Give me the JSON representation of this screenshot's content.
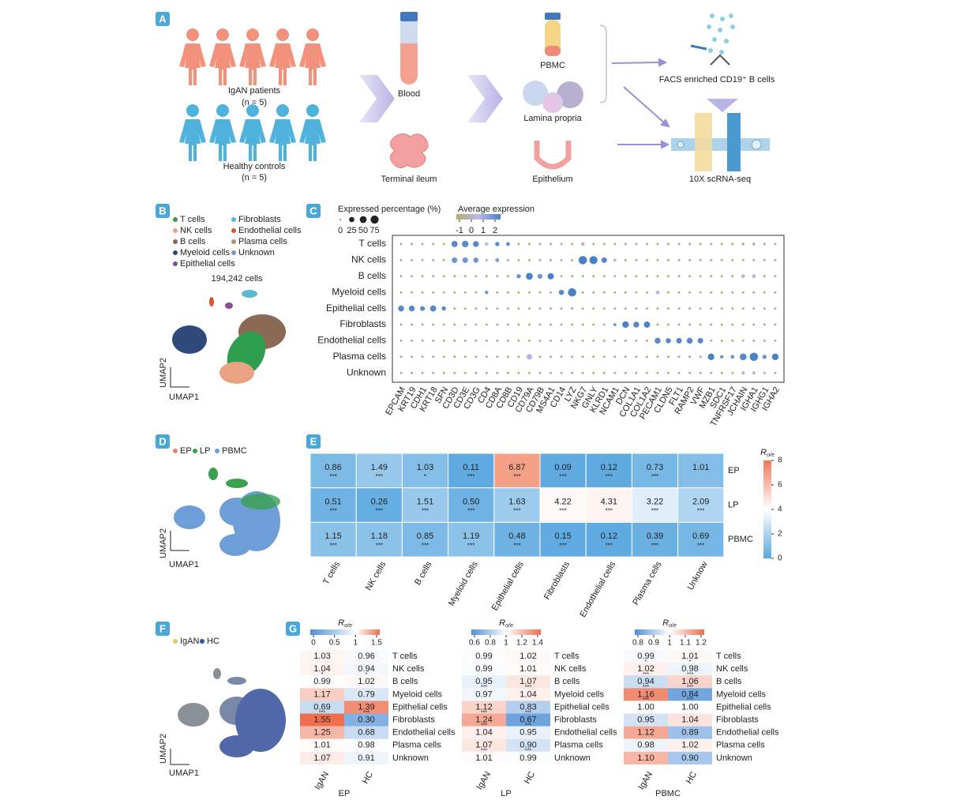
{
  "panel_a": {
    "letter": "A",
    "patients_label": "IgAN patients",
    "patients_n": "(n = 5)",
    "controls_label": "Healthy controls",
    "controls_n": "(n = 5)",
    "blood": "Blood",
    "ileum": "Terminal ileum",
    "pbmc": "PBMC",
    "lamina": "Lamina propria",
    "epithelium": "Epithelium",
    "facs": "FACS enriched CD19⁺ B cells",
    "seq": "10X scRNA-seq"
  },
  "panel_b": {
    "letter": "B",
    "legend": [
      {
        "name": "T cells",
        "color": "#2e9e4f"
      },
      {
        "name": "NK cells",
        "color": "#e9a383"
      },
      {
        "name": "B cells",
        "color": "#8b6a55"
      },
      {
        "name": "Myeloid cells",
        "color": "#2f4a7a"
      },
      {
        "name": "Epithelial cells",
        "color": "#8a4a9a"
      },
      {
        "name": "Fibroblasts",
        "color": "#5bb8d0"
      },
      {
        "name": "Endothelial cells",
        "color": "#d9542f"
      },
      {
        "name": "Plasma cells",
        "color": "#a39585"
      },
      {
        "name": "Unknown",
        "color": "#8a90c8"
      }
    ],
    "cell_count": "194,242 cells",
    "ylabel": "UMAP2",
    "xlabel": "UMAP1"
  },
  "panel_c": {
    "letter": "C",
    "size_title": "Expressed percentage (%)",
    "size_ticks": [
      0,
      25,
      50,
      75
    ],
    "color_title": "Average expression",
    "color_ticks": [
      -1,
      0,
      1,
      2
    ],
    "clim": [
      -1,
      2
    ],
    "colors": [
      "#b5ac6e",
      "#bdb9e6",
      "#4a82c8"
    ],
    "rows": [
      "T cells",
      "NK cells",
      "B cells",
      "Myeloid cells",
      "Epithelial cells",
      "Fibroblasts",
      "Endothelial cells",
      "Plasma cells",
      "Unknown"
    ],
    "genes": [
      "EPCAM",
      "KRT19",
      "CDH1",
      "KRT18",
      "SFN",
      "CD3D",
      "CD3E",
      "CD3G",
      "CD4",
      "CD8A",
      "CD8B",
      "CD19",
      "CD79A",
      "CD79B",
      "MS4A1",
      "CD14",
      "LYZ",
      "NKG7",
      "GNLY",
      "KLRD1",
      "NCAM1",
      "DCN",
      "COL1A1",
      "COL1A2",
      "PECAM1",
      "CLDN5",
      "FLT1",
      "RAMP2",
      "VWF",
      "MZB1",
      "SDC1",
      "TNFRSF17",
      "JCHAIN",
      "IGHA1",
      "IGHG1",
      "IGHA2"
    ],
    "pct": [
      [
        2,
        2,
        2,
        2,
        2,
        40,
        45,
        35,
        8,
        15,
        10,
        2,
        2,
        2,
        2,
        2,
        2,
        8,
        2,
        2,
        2,
        2,
        2,
        2,
        2,
        2,
        2,
        2,
        2,
        2,
        2,
        2,
        4,
        4,
        2,
        2
      ],
      [
        2,
        2,
        2,
        2,
        2,
        30,
        30,
        25,
        2,
        12,
        5,
        2,
        2,
        2,
        2,
        2,
        2,
        80,
        75,
        30,
        5,
        2,
        2,
        2,
        2,
        2,
        2,
        2,
        2,
        2,
        2,
        2,
        2,
        2,
        2,
        2
      ],
      [
        2,
        2,
        2,
        2,
        2,
        2,
        2,
        2,
        2,
        2,
        2,
        15,
        50,
        20,
        40,
        2,
        2,
        2,
        2,
        2,
        2,
        2,
        2,
        2,
        2,
        2,
        2,
        2,
        2,
        2,
        2,
        2,
        10,
        10,
        2,
        2
      ],
      [
        2,
        2,
        2,
        2,
        2,
        2,
        2,
        2,
        8,
        2,
        2,
        2,
        2,
        2,
        2,
        25,
        80,
        2,
        2,
        2,
        2,
        2,
        2,
        2,
        10,
        2,
        2,
        2,
        2,
        2,
        2,
        2,
        2,
        2,
        2,
        2
      ],
      [
        35,
        35,
        20,
        40,
        15,
        2,
        2,
        2,
        2,
        2,
        2,
        2,
        2,
        2,
        2,
        2,
        2,
        2,
        2,
        2,
        2,
        2,
        2,
        2,
        2,
        2,
        2,
        2,
        2,
        2,
        2,
        2,
        2,
        2,
        2,
        2
      ],
      [
        2,
        2,
        2,
        2,
        2,
        2,
        2,
        2,
        2,
        2,
        2,
        2,
        2,
        2,
        2,
        2,
        2,
        2,
        2,
        2,
        5,
        45,
        35,
        40,
        2,
        2,
        2,
        2,
        2,
        2,
        2,
        2,
        2,
        2,
        2,
        2
      ],
      [
        2,
        2,
        2,
        2,
        2,
        2,
        2,
        2,
        2,
        2,
        2,
        2,
        2,
        2,
        2,
        2,
        2,
        2,
        2,
        2,
        2,
        2,
        2,
        2,
        35,
        25,
        30,
        35,
        30,
        2,
        2,
        2,
        2,
        2,
        2,
        2
      ],
      [
        2,
        2,
        2,
        2,
        2,
        2,
        2,
        2,
        2,
        2,
        2,
        2,
        30,
        2,
        2,
        2,
        2,
        2,
        2,
        2,
        2,
        2,
        2,
        2,
        2,
        2,
        2,
        2,
        2,
        45,
        8,
        10,
        50,
        80,
        15,
        45
      ],
      [
        2,
        2,
        2,
        2,
        2,
        2,
        2,
        2,
        2,
        2,
        2,
        2,
        2,
        2,
        2,
        2,
        2,
        2,
        2,
        2,
        2,
        2,
        2,
        2,
        2,
        2,
        2,
        2,
        2,
        2,
        2,
        2,
        6,
        6,
        2,
        2
      ]
    ],
    "expr": [
      [
        -0.8,
        -0.8,
        -0.8,
        -0.8,
        -0.8,
        1.8,
        1.8,
        1.8,
        0.5,
        1.8,
        1.8,
        -0.8,
        -0.8,
        -0.8,
        -0.8,
        -0.8,
        -0.8,
        0,
        -0.8,
        -0.8,
        -0.8,
        -0.8,
        -0.8,
        -0.8,
        -0.8,
        -0.8,
        -0.8,
        -0.8,
        -0.8,
        -0.8,
        -0.8,
        -0.8,
        -0.8,
        -0.8,
        -0.8,
        -0.8
      ],
      [
        -0.8,
        -0.8,
        -0.8,
        -0.8,
        -0.8,
        1.5,
        1.5,
        1.5,
        -0.8,
        1.2,
        0.5,
        -0.8,
        -0.8,
        -0.8,
        -0.8,
        -0.8,
        -0.8,
        2,
        2,
        1.8,
        0,
        -0.8,
        -0.8,
        -0.8,
        -0.8,
        -0.8,
        -0.8,
        -0.8,
        -0.8,
        -0.8,
        -0.8,
        -0.8,
        -0.8,
        -0.8,
        -0.8,
        -0.8
      ],
      [
        -0.8,
        -0.8,
        -0.8,
        -0.8,
        -0.8,
        -0.8,
        -0.8,
        -0.8,
        -0.8,
        -0.8,
        -0.8,
        1.5,
        2,
        1.5,
        2,
        -0.8,
        -0.8,
        -0.8,
        -0.8,
        -0.8,
        -0.8,
        -0.8,
        -0.8,
        -0.8,
        -0.8,
        -0.8,
        -0.8,
        -0.8,
        -0.8,
        -0.8,
        -0.8,
        -0.8,
        0,
        0.3,
        -0.8,
        -0.8
      ],
      [
        -0.8,
        -0.8,
        -0.8,
        -0.8,
        -0.8,
        -0.8,
        -0.8,
        -0.8,
        1.5,
        -0.8,
        -0.8,
        -0.8,
        -0.8,
        -0.8,
        -0.8,
        1.8,
        2,
        -0.8,
        -0.8,
        -0.8,
        -0.8,
        -0.8,
        -0.8,
        -0.8,
        0.6,
        -0.8,
        -0.8,
        -0.8,
        -0.8,
        -0.8,
        -0.8,
        -0.8,
        -0.8,
        -0.8,
        -0.8,
        -0.8
      ],
      [
        1.8,
        1.8,
        1.8,
        1.8,
        1.8,
        -0.8,
        -0.8,
        -0.8,
        -0.8,
        -0.8,
        -0.8,
        -0.8,
        -0.8,
        -0.8,
        -0.8,
        -0.8,
        -0.8,
        -0.8,
        -0.8,
        -0.8,
        -0.8,
        -0.8,
        -0.8,
        -0.8,
        -0.8,
        -0.8,
        -0.8,
        -0.8,
        -0.8,
        -0.8,
        -0.8,
        -0.8,
        -0.8,
        -0.8,
        -0.8,
        -0.8
      ],
      [
        -0.8,
        -0.8,
        -0.8,
        -0.8,
        -0.8,
        -0.8,
        -0.8,
        -0.8,
        -0.8,
        -0.8,
        -0.8,
        -0.8,
        -0.8,
        -0.8,
        -0.8,
        -0.8,
        -0.8,
        -0.8,
        -0.8,
        -0.8,
        1.5,
        2,
        1.8,
        2,
        -0.8,
        -0.8,
        -0.8,
        -0.8,
        -0.8,
        -0.8,
        -0.8,
        -0.8,
        -0.8,
        -0.8,
        -0.8,
        -0.8
      ],
      [
        -0.8,
        -0.8,
        -0.8,
        -0.8,
        -0.8,
        -0.8,
        -0.8,
        -0.8,
        -0.8,
        -0.8,
        -0.8,
        -0.8,
        -0.8,
        -0.8,
        -0.8,
        -0.8,
        -0.8,
        -0.8,
        -0.8,
        -0.8,
        -0.8,
        -0.8,
        -0.8,
        -0.8,
        1.8,
        1.8,
        1.8,
        1.8,
        1.8,
        -0.8,
        -0.8,
        -0.8,
        -0.8,
        -0.8,
        -0.8,
        -0.8
      ],
      [
        -0.8,
        -0.8,
        -0.8,
        -0.8,
        -0.8,
        -0.8,
        -0.8,
        -0.8,
        -0.8,
        -0.8,
        -0.8,
        -0.8,
        0.6,
        -0.8,
        -0.8,
        -0.8,
        -0.8,
        -0.8,
        -0.8,
        -0.8,
        -0.8,
        -0.8,
        -0.8,
        -0.8,
        -0.8,
        -0.8,
        -0.8,
        -0.8,
        -0.8,
        2,
        1.5,
        1.5,
        1.8,
        2,
        1.5,
        2
      ],
      [
        -0.8,
        -0.8,
        -0.8,
        -0.8,
        -0.8,
        -0.8,
        -0.8,
        -0.8,
        -0.8,
        -0.8,
        -0.8,
        -0.8,
        -0.8,
        -0.8,
        -0.8,
        -0.8,
        -0.8,
        -0.8,
        -0.8,
        -0.8,
        -0.8,
        -0.8,
        -0.8,
        -0.8,
        -0.8,
        -0.8,
        -0.8,
        -0.8,
        -0.8,
        -0.8,
        -0.8,
        -0.8,
        0.2,
        0.2,
        -0.8,
        -0.8
      ]
    ]
  },
  "panel_d": {
    "letter": "D",
    "legend": [
      {
        "name": "EP",
        "color": "#ef8070"
      },
      {
        "name": "LP",
        "color": "#3aa050"
      },
      {
        "name": "PBMC",
        "color": "#6d9ed8"
      }
    ],
    "ylabel": "UMAP2",
    "xlabel": "UMAP1"
  },
  "panel_e": {
    "letter": "E",
    "columns": [
      "T cells",
      "NK cells",
      "B cells",
      "Myeloid cells",
      "Epithelial cells",
      "Fibroblasts",
      "Endothelial cells",
      "Plasma cells",
      "Unknow"
    ],
    "rows": [
      "EP",
      "LP",
      "PBMC"
    ],
    "values": [
      [
        0.86,
        1.49,
        1.03,
        0.11,
        6.87,
        0.09,
        0.12,
        0.73,
        1.01
      ],
      [
        0.51,
        0.26,
        1.51,
        0.5,
        1.63,
        4.22,
        4.31,
        3.22,
        2.09
      ],
      [
        1.15,
        1.18,
        0.85,
        1.19,
        0.48,
        0.15,
        0.12,
        0.39,
        0.69
      ]
    ],
    "value_labels": [
      [
        "0.86",
        "1.49",
        "1.03",
        "0.11",
        "6.87",
        "0.09",
        "0.12",
        "0.73",
        "1.01"
      ],
      [
        "0.51",
        "0.26",
        "1.51",
        "0.50",
        "1.63",
        "4.22",
        "4.31",
        "3.22",
        "2.09"
      ],
      [
        "1.15",
        "1.18",
        "0.85",
        "1.19",
        "0.48",
        "0.15",
        "0.12",
        "0.39",
        "0.69"
      ]
    ],
    "stars": [
      [
        "***",
        "***",
        "*",
        "***",
        "***",
        "***",
        "***",
        "***",
        null
      ],
      [
        "***",
        "***",
        "***",
        "***",
        "***",
        "***",
        "***",
        "***",
        "***"
      ],
      [
        "***",
        "***",
        "***",
        "***",
        "***",
        "***",
        "***",
        "***",
        "***"
      ]
    ],
    "cbar_title": "R",
    "cbar_sub": "o/e",
    "clim": [
      0,
      8
    ],
    "center": 4,
    "ticks": [
      0,
      2,
      4,
      6,
      8
    ],
    "colors": [
      "#5aa8e0",
      "#ffffff",
      "#f07a58"
    ]
  },
  "panel_f": {
    "letter": "F",
    "legend": [
      {
        "name": "IgAN",
        "color": "#e8c060"
      },
      {
        "name": "HC",
        "color": "#2f50b0"
      }
    ],
    "ylabel": "UMAP2",
    "xlabel": "UMAP1"
  },
  "panel_g": {
    "letter": "G",
    "rows": [
      "T cells",
      "NK cells",
      "B cells",
      "Myeloid cells",
      "Epithelial cells",
      "Fibroblasts",
      "Endothelial cells",
      "Plasma cells",
      "Unknown"
    ],
    "columns": [
      "IgAN",
      "HC"
    ],
    "cbar_title": "R",
    "cbar_sub": "o/e",
    "colors": [
      "#4f8fd6",
      "#ffffff",
      "#ee6e4e"
    ],
    "groups": [
      {
        "name": "EP",
        "clim": [
          0,
          1.5
        ],
        "center": 1,
        "ticks": [
          0,
          0.5,
          1,
          1.5
        ],
        "values": [
          [
            1.03,
            0.96
          ],
          [
            1.04,
            0.94
          ],
          [
            0.99,
            1.02
          ],
          [
            1.17,
            0.79
          ],
          [
            0.69,
            1.39
          ],
          [
            1.55,
            0.3
          ],
          [
            1.25,
            0.68
          ],
          [
            1.01,
            0.98
          ],
          [
            1.07,
            0.91
          ]
        ],
        "value_labels": [
          [
            "1.03",
            "0.96"
          ],
          [
            "1.04",
            "0.94"
          ],
          [
            "0.99",
            "1.02"
          ],
          [
            "1.17",
            "0.79"
          ],
          [
            "0.69",
            "1.39"
          ],
          [
            "1.55",
            "0.30"
          ],
          [
            "1.25",
            "0.68"
          ],
          [
            "1.01",
            "0.98"
          ],
          [
            "1.07",
            "0.91"
          ]
        ],
        "stars": [
          [
            null,
            null
          ],
          [
            "*",
            "*"
          ],
          [
            null,
            null
          ],
          [
            null,
            null
          ],
          [
            "***",
            "***"
          ],
          [
            null,
            null
          ],
          [
            null,
            null
          ],
          [
            null,
            null
          ],
          [
            null,
            null
          ]
        ]
      },
      {
        "name": "LP",
        "clim": [
          0.6,
          1.4
        ],
        "center": 1,
        "ticks": [
          0.6,
          0.8,
          1,
          1.2,
          1.4
        ],
        "values": [
          [
            0.99,
            1.02
          ],
          [
            0.99,
            1.01
          ],
          [
            0.95,
            1.07
          ],
          [
            0.97,
            1.04
          ],
          [
            1.12,
            0.83
          ],
          [
            1.24,
            0.67
          ],
          [
            1.04,
            0.95
          ],
          [
            1.07,
            0.9
          ],
          [
            1.01,
            0.99
          ]
        ],
        "value_labels": [
          [
            "0.99",
            "1.02"
          ],
          [
            "0.99",
            "1.01"
          ],
          [
            "0.95",
            "1.07"
          ],
          [
            "0.97",
            "1.04"
          ],
          [
            "1.12",
            "0.83"
          ],
          [
            "1.24",
            "0.67"
          ],
          [
            "1.04",
            "0.95"
          ],
          [
            "1.07",
            "0.90"
          ],
          [
            "1.01",
            "0.99"
          ]
        ],
        "stars": [
          [
            null,
            null
          ],
          [
            null,
            null
          ],
          [
            "***",
            "***"
          ],
          [
            null,
            null
          ],
          [
            "***",
            "***"
          ],
          [
            "***",
            "***"
          ],
          [
            null,
            null
          ],
          [
            "***",
            "***"
          ],
          [
            null,
            null
          ]
        ]
      },
      {
        "name": "PBMC",
        "clim": [
          0.8,
          1.2
        ],
        "center": 1,
        "ticks": [
          0.8,
          0.9,
          1,
          1.1,
          1.2
        ],
        "values": [
          [
            0.99,
            1.01
          ],
          [
            1.02,
            0.98
          ],
          [
            0.94,
            1.06
          ],
          [
            1.16,
            0.84
          ],
          [
            1,
            1
          ],
          [
            0.95,
            1.04
          ],
          [
            1.12,
            0.89
          ],
          [
            0.98,
            1.02
          ],
          [
            1.1,
            0.9
          ]
        ],
        "value_labels": [
          [
            "0.99",
            "1.01"
          ],
          [
            "1.02",
            "0.98"
          ],
          [
            "0.94",
            "1.06"
          ],
          [
            "1.16",
            "0.84"
          ],
          [
            "1.00",
            "1.00"
          ],
          [
            "0.95",
            "1.04"
          ],
          [
            "1.12",
            "0.89"
          ],
          [
            "0.98",
            "1.02"
          ],
          [
            "1.10",
            "0.90"
          ]
        ],
        "stars": [
          [
            "*",
            "*"
          ],
          [
            "***",
            "***"
          ],
          [
            "***",
            "***"
          ],
          [
            "***",
            "***"
          ],
          [
            null,
            null
          ],
          [
            null,
            null
          ],
          [
            null,
            null
          ],
          [
            null,
            null
          ],
          [
            null,
            null
          ]
        ]
      }
    ]
  }
}
